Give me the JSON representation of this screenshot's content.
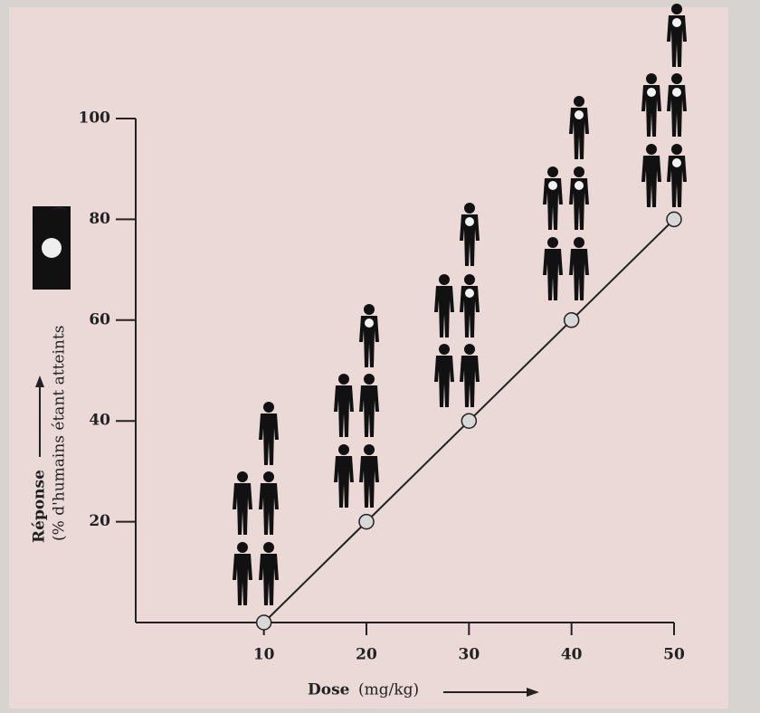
{
  "chart_data": {
    "type": "line",
    "y_label": "Réponse",
    "y_label_sub": "(% d'humains étant atteints",
    "y_label_close": ")",
    "x_label": "Dose",
    "x_unit": "(mg/kg)",
    "x": [
      10,
      20,
      30,
      40,
      50
    ],
    "values": [
      0,
      20,
      40,
      60,
      80
    ],
    "color": "#222222",
    "marker_color": "#d8d8d8",
    "xlim": [
      -2.5,
      50
    ],
    "ylim": [
      0,
      100
    ],
    "xticks": [
      10,
      20,
      30,
      40,
      50
    ],
    "yticks": [
      20,
      40,
      60,
      80,
      100
    ]
  }
}
